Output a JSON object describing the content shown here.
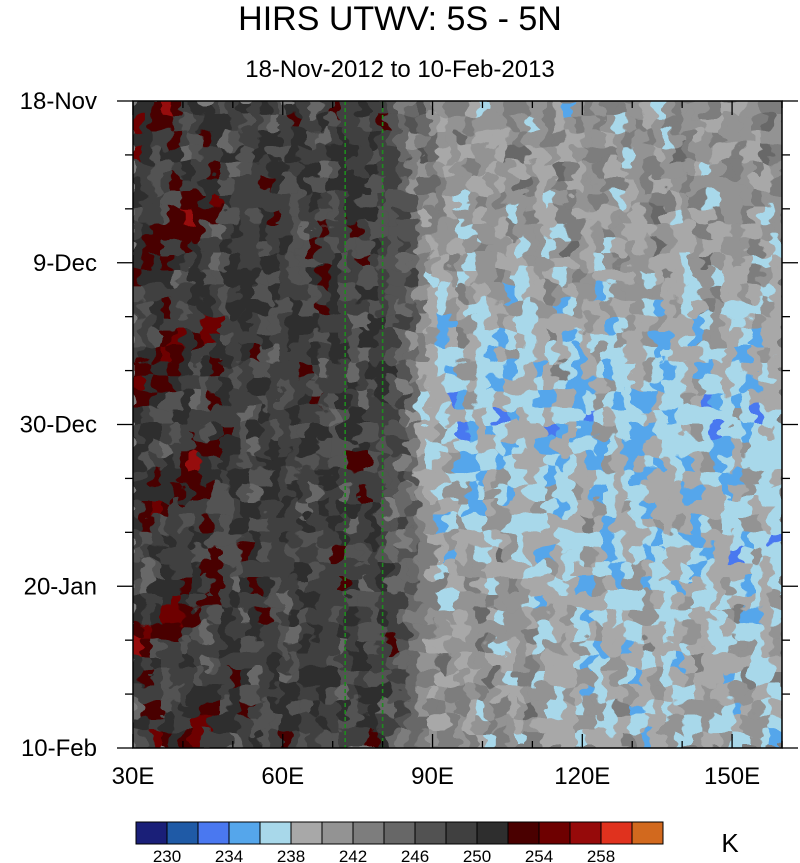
{
  "chart_data": {
    "type": "heatmap",
    "title": "HIRS UTWV: 5S - 5N",
    "subtitle": "18-Nov-2012 to 10-Feb-2013",
    "x_axis": {
      "range": [
        30,
        160
      ],
      "unit": "longitude (degrees E)",
      "ticks": [
        {
          "value": 30,
          "label": "30E"
        },
        {
          "value": 60,
          "label": "60E"
        },
        {
          "value": 90,
          "label": "90E"
        },
        {
          "value": 120,
          "label": "120E"
        },
        {
          "value": 150,
          "label": "150E"
        }
      ]
    },
    "y_axis": {
      "range_days": [
        0,
        84
      ],
      "direction": "top-to-bottom",
      "ticks": [
        {
          "day": 0,
          "label": "18-Nov"
        },
        {
          "day": 21,
          "label": "9-Dec"
        },
        {
          "day": 42,
          "label": "30-Dec"
        },
        {
          "day": 63,
          "label": "20-Jan"
        },
        {
          "day": 84,
          "label": "10-Feb"
        }
      ]
    },
    "reference_lines": [
      {
        "longitude": 72.5,
        "style": "dashed",
        "color": "#1e8c1e"
      },
      {
        "longitude": 80,
        "style": "dashed",
        "color": "#1e8c1e"
      }
    ],
    "colorbar": {
      "unit_label": "K",
      "levels": [
        228,
        230,
        232,
        234,
        236,
        238,
        240,
        242,
        244,
        246,
        248,
        250,
        252,
        254,
        256,
        258,
        260
      ],
      "labeled_levels": [
        {
          "value": 230,
          "label": "230"
        },
        {
          "value": 234,
          "label": "234"
        },
        {
          "value": 238,
          "label": "238"
        },
        {
          "value": 242,
          "label": "242"
        },
        {
          "value": 246,
          "label": "246"
        },
        {
          "value": 250,
          "label": "250"
        },
        {
          "value": 254,
          "label": "254"
        },
        {
          "value": 258,
          "label": "258"
        }
      ],
      "colors": [
        "#1a1f78",
        "#1f5aa6",
        "#4a78f0",
        "#55a6eb",
        "#a8d8ea",
        "#a8a8a8",
        "#939393",
        "#7d7d7d",
        "#676767",
        "#525252",
        "#404040",
        "#2e2e2e",
        "#4a0000",
        "#6e0000",
        "#960a0a",
        "#e0321e",
        "#d2691e"
      ]
    },
    "field_summary": "Warm (dark/red, 246-258 K) west of ~80E; cool (blue, 230-238 K) east of ~90E, strongest from mid-December to January"
  }
}
